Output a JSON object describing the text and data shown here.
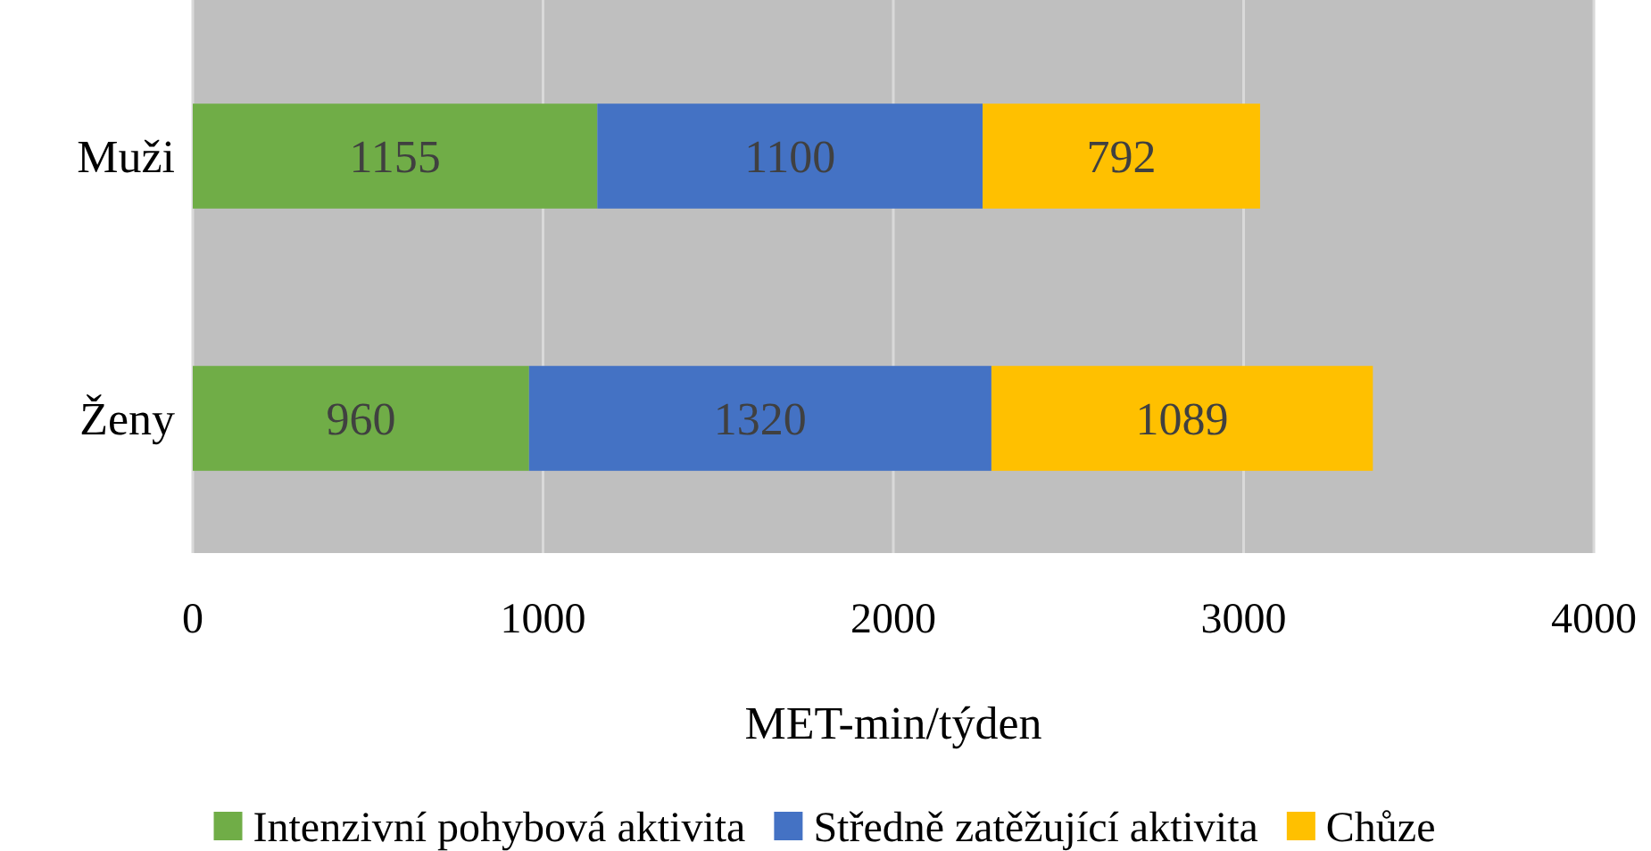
{
  "chart_data": {
    "type": "bar",
    "orientation": "horizontal",
    "stacked": true,
    "categories": [
      "Muži",
      "Ženy"
    ],
    "series": [
      {
        "name": "Intenzivní pohybová aktivita",
        "color": "#70ad47",
        "values": [
          1155,
          960
        ]
      },
      {
        "name": "Středně zatěžující aktivita",
        "color": "#4472c4",
        "values": [
          1100,
          1320
        ]
      },
      {
        "name": "Chůze",
        "color": "#ffc000",
        "values": [
          792,
          1089
        ]
      }
    ],
    "xlabel": "MET-min/týden",
    "xlim": [
      0,
      4000
    ],
    "xticks": [
      0,
      1000,
      2000,
      3000,
      4000
    ],
    "grid": "x",
    "legend": "bottom",
    "data_labels": true
  }
}
